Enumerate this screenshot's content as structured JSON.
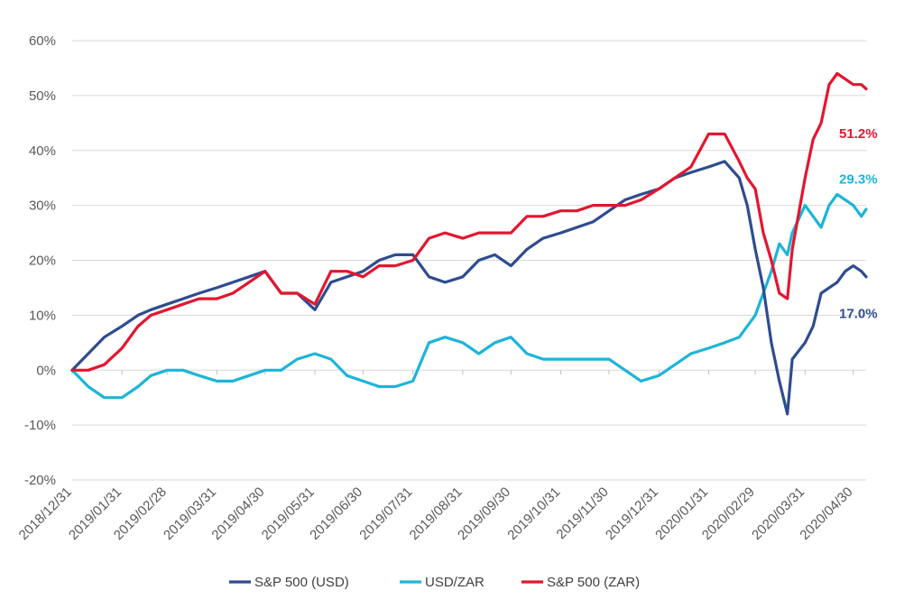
{
  "chart_data": {
    "type": "line",
    "title": "",
    "xlabel": "",
    "ylabel": "",
    "ylim": [
      -20,
      60
    ],
    "y_ticks": [
      "60%",
      "50%",
      "40%",
      "30%",
      "20%",
      "10%",
      "0%",
      "-10%",
      "-20%"
    ],
    "y_tick_values": [
      60,
      50,
      40,
      30,
      20,
      10,
      0,
      -10,
      -20
    ],
    "x_ticks": [
      "2018/12/31",
      "2019/01/31",
      "2019/02/28",
      "2019/03/31",
      "2019/04/30",
      "2019/05/31",
      "2019/06/30",
      "2019/07/31",
      "2019/08/31",
      "2019/09/30",
      "2019/10/31",
      "2019/11/30",
      "2019/12/31",
      "2020/01/31",
      "2020/02/29",
      "2020/03/31",
      "2020/04/30"
    ],
    "grid": true,
    "legend_position": "bottom",
    "colors": {
      "usd": "#2e4c8f",
      "usdzar": "#1cb5d8",
      "zar": "#e3162f"
    },
    "x": [
      "2018/12/31",
      "2019/01/10",
      "2019/01/20",
      "2019/01/31",
      "2019/02/10",
      "2019/02/18",
      "2019/02/28",
      "2019/03/10",
      "2019/03/20",
      "2019/03/31",
      "2019/04/10",
      "2019/04/20",
      "2019/04/30",
      "2019/05/10",
      "2019/05/20",
      "2019/05/31",
      "2019/06/10",
      "2019/06/20",
      "2019/06/30",
      "2019/07/10",
      "2019/07/20",
      "2019/07/31",
      "2019/08/10",
      "2019/08/20",
      "2019/08/31",
      "2019/09/10",
      "2019/09/20",
      "2019/09/30",
      "2019/10/10",
      "2019/10/20",
      "2019/10/31",
      "2019/11/10",
      "2019/11/20",
      "2019/11/30",
      "2019/12/10",
      "2019/12/20",
      "2019/12/31",
      "2020/01/10",
      "2020/01/20",
      "2020/01/31",
      "2020/02/10",
      "2020/02/19",
      "2020/02/24",
      "2020/02/29",
      "2020/03/05",
      "2020/03/10",
      "2020/03/15",
      "2020/03/20",
      "2020/03/23",
      "2020/03/31",
      "2020/04/05",
      "2020/04/10",
      "2020/04/15",
      "2020/04/20",
      "2020/04/25",
      "2020/04/30",
      "2020/05/05",
      "2020/05/08"
    ],
    "series": [
      {
        "name": "S&P 500 (USD)",
        "values": [
          0,
          3,
          6,
          8,
          10,
          11,
          12,
          13,
          14,
          15,
          16,
          17,
          18,
          14,
          14,
          11,
          16,
          17,
          18,
          20,
          21,
          21,
          17,
          16,
          17,
          20,
          21,
          19,
          22,
          24,
          25,
          26,
          27,
          29,
          31,
          32,
          33,
          35,
          36,
          37,
          38,
          35,
          30,
          22,
          15,
          5,
          -2,
          -8,
          2,
          5,
          8,
          14,
          15,
          16,
          18,
          19,
          18,
          17.0
        ]
      },
      {
        "name": "USD/ZAR",
        "values": [
          0,
          -3,
          -5,
          -5,
          -3,
          -1,
          0,
          0,
          -1,
          -2,
          -2,
          -1,
          0,
          0,
          2,
          3,
          2,
          -1,
          -2,
          -3,
          -3,
          -2,
          5,
          6,
          5,
          3,
          5,
          6,
          3,
          2,
          2,
          2,
          2,
          2,
          0,
          -2,
          -1,
          1,
          3,
          4,
          5,
          6,
          8,
          10,
          14,
          18,
          23,
          21,
          25,
          30,
          28,
          26,
          30,
          32,
          31,
          30,
          28,
          29.3
        ]
      },
      {
        "name": "S&P 500 (ZAR)",
        "values": [
          0,
          0,
          1,
          4,
          8,
          10,
          11,
          12,
          13,
          13,
          14,
          16,
          18,
          14,
          14,
          12,
          18,
          18,
          17,
          19,
          19,
          20,
          24,
          25,
          24,
          25,
          25,
          25,
          28,
          28,
          29,
          29,
          30,
          30,
          30,
          31,
          33,
          35,
          37,
          43,
          43,
          38,
          35,
          33,
          25,
          20,
          14,
          13,
          22,
          35,
          42,
          45,
          52,
          54,
          53,
          52,
          52,
          51.2
        ]
      }
    ],
    "end_labels": [
      {
        "series": "S&P 500 (ZAR)",
        "text": "51.2%"
      },
      {
        "series": "USD/ZAR",
        "text": "29.3%"
      },
      {
        "series": "S&P 500 (USD)",
        "text": "17.0%"
      }
    ]
  }
}
